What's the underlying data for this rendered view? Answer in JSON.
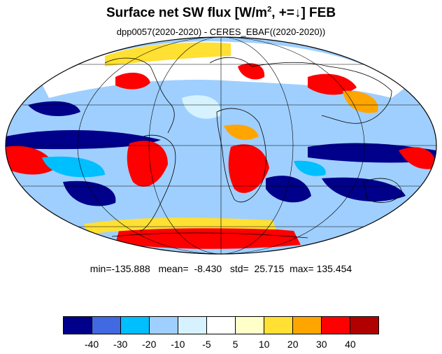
{
  "title": {
    "main": "Surface net SW flux [W/m",
    "sup": "2",
    "rest": ", +=↓]  FEB"
  },
  "subtitle": "dpp0057(2020-2020) - CERES_EBAF((2020-2020))",
  "stats": {
    "min_label": "min=",
    "min": "-135.888",
    "mean_label": "mean=",
    "mean": "-8.430",
    "std_label": "std=",
    "std": "25.715",
    "max_label": "max=",
    "max": "135.454"
  },
  "colorbar": {
    "colors": [
      "#00008b",
      "#4169e1",
      "#00bfff",
      "#9fcfff",
      "#d6f2ff",
      "#ffffff",
      "#ffffc8",
      "#ffe033",
      "#ffa500",
      "#ff0000",
      "#b00000"
    ],
    "labels": [
      "-40",
      "-30",
      "-20",
      "-10",
      "-5",
      "5",
      "10",
      "20",
      "30",
      "40"
    ]
  },
  "map": {
    "projection": "mollweide",
    "grid": true,
    "variable": "surface net shortwave flux difference"
  }
}
